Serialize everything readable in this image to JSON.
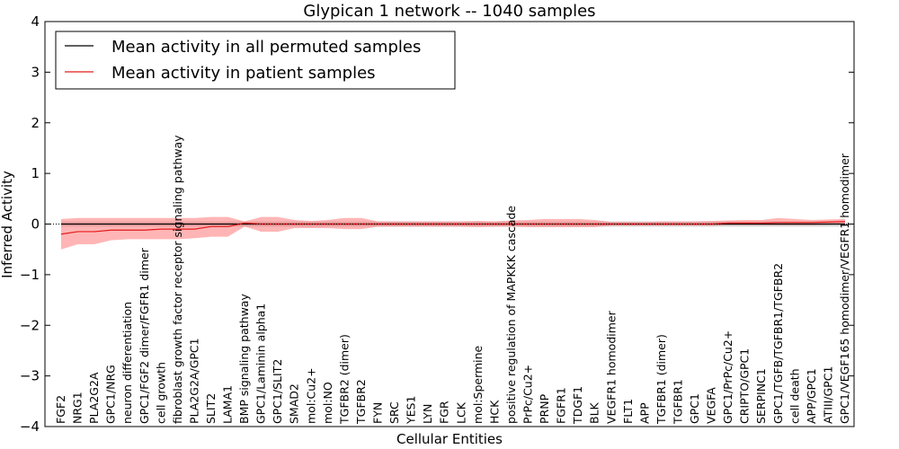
{
  "chart_data": {
    "type": "line",
    "title": "Glypican 1 network -- 1040 samples",
    "xlabel": "Cellular Entities",
    "ylabel": "Inferred Activity",
    "ylim": [
      -4,
      4
    ],
    "yticks": [
      -4,
      -3,
      -2,
      -1,
      0,
      1,
      2,
      3,
      4
    ],
    "ytick_labels": [
      "−4",
      "−3",
      "−2",
      "−1",
      "0",
      "1",
      "2",
      "3",
      "4"
    ],
    "grid": false,
    "legend_position": "top-left",
    "categories": [
      "FGF2",
      "NRG1",
      "PLA2G2A",
      "GPC1/NRG",
      "neuron differentiation",
      "GPC1/FGF2 dimer/FGFR1 dimer",
      "cell growth",
      "fibroblast growth factor receptor signaling pathway",
      "PLA2G2A/GPC1",
      "SLIT2",
      "LAMA1",
      "BMP signaling pathway",
      "GPC1/Laminin alpha1",
      "GPC1/SLIT2",
      "SMAD2",
      "mol:Cu2+",
      "mol:NO",
      "TGFBR2 (dimer)",
      "TGFBR2",
      "FYN",
      "SRC",
      "YES1",
      "LYN",
      "FGR",
      "LCK",
      "mol:Spermine",
      "HCK",
      "positive regulation of MAPKKK cascade",
      "PrPc/Cu2+",
      "PRNP",
      "FGFR1",
      "TDGF1",
      "BLK",
      "VEGFR1 homodimer",
      "FLT1",
      "APP",
      "TGFBR1 (dimer)",
      "TGFBR1",
      "GPC1",
      "VEGFA",
      "GPC1/PrPc/Cu2+",
      "CRIPTO/GPC1",
      "SERPINC1",
      "GPC1/TGFB/TGFBR1/TGFBR2",
      "cell death",
      "APP/GPC1",
      "ATIII/GPC1",
      "GPC1/VEGF165 homodimer/VEGFR1 homodimer"
    ],
    "series": [
      {
        "name": "Mean activity in all permuted samples",
        "color": "#000000",
        "values": [
          0.0,
          0.0,
          0.0,
          0.0,
          0.0,
          0.0,
          0.0,
          0.0,
          0.0,
          0.0,
          0.0,
          0.0,
          0.0,
          0.0,
          0.0,
          0.0,
          0.0,
          0.0,
          0.0,
          0.0,
          0.0,
          0.0,
          0.0,
          0.0,
          0.0,
          0.0,
          0.0,
          0.0,
          0.0,
          0.0,
          0.0,
          0.0,
          0.0,
          0.0,
          0.0,
          0.0,
          0.0,
          0.0,
          0.0,
          0.0,
          0.0,
          0.0,
          0.0,
          0.0,
          0.0,
          0.0,
          0.0,
          0.0
        ],
        "band_lower": [
          -0.05,
          -0.05,
          -0.05,
          -0.05,
          -0.05,
          -0.05,
          -0.05,
          -0.05,
          -0.05,
          -0.05,
          -0.05,
          -0.05,
          -0.05,
          -0.05,
          -0.05,
          -0.05,
          -0.05,
          -0.05,
          -0.05,
          -0.05,
          -0.05,
          -0.05,
          -0.05,
          -0.05,
          -0.05,
          -0.05,
          -0.05,
          -0.05,
          -0.05,
          -0.05,
          -0.05,
          -0.05,
          -0.05,
          -0.05,
          -0.05,
          -0.05,
          -0.05,
          -0.05,
          -0.05,
          -0.05,
          -0.05,
          -0.05,
          -0.05,
          -0.05,
          -0.05,
          -0.05,
          -0.05,
          -0.05
        ],
        "band_upper": [
          0.05,
          0.05,
          0.05,
          0.05,
          0.05,
          0.05,
          0.05,
          0.05,
          0.05,
          0.05,
          0.05,
          0.05,
          0.05,
          0.05,
          0.05,
          0.05,
          0.05,
          0.05,
          0.05,
          0.05,
          0.05,
          0.05,
          0.05,
          0.05,
          0.05,
          0.05,
          0.05,
          0.05,
          0.05,
          0.05,
          0.05,
          0.05,
          0.05,
          0.05,
          0.05,
          0.05,
          0.05,
          0.05,
          0.05,
          0.05,
          0.05,
          0.05,
          0.05,
          0.05,
          0.05,
          0.05,
          0.05,
          0.05
        ]
      },
      {
        "name": "Mean activity in patient samples",
        "color": "#e41a1c",
        "values": [
          -0.2,
          -0.15,
          -0.15,
          -0.12,
          -0.12,
          -0.12,
          -0.1,
          -0.1,
          -0.1,
          -0.05,
          -0.05,
          0.02,
          0.0,
          0.0,
          0.0,
          0.0,
          0.0,
          0.0,
          0.0,
          0.0,
          0.0,
          0.0,
          0.0,
          0.0,
          0.0,
          0.0,
          0.0,
          0.0,
          0.0,
          0.0,
          0.0,
          0.0,
          0.0,
          0.0,
          0.0,
          0.0,
          0.0,
          0.0,
          0.0,
          0.0,
          0.02,
          0.02,
          0.02,
          0.03,
          0.03,
          0.03,
          0.04,
          0.05
        ],
        "band_lower": [
          -0.5,
          -0.4,
          -0.4,
          -0.32,
          -0.3,
          -0.3,
          -0.3,
          -0.3,
          -0.28,
          -0.25,
          -0.25,
          -0.05,
          -0.15,
          -0.15,
          -0.08,
          -0.08,
          -0.08,
          -0.1,
          -0.1,
          -0.05,
          -0.05,
          -0.05,
          -0.05,
          -0.05,
          -0.05,
          -0.06,
          -0.05,
          -0.05,
          -0.06,
          -0.06,
          -0.06,
          -0.06,
          -0.06,
          -0.03,
          -0.03,
          -0.03,
          -0.03,
          -0.03,
          -0.03,
          -0.03,
          -0.02,
          -0.02,
          -0.02,
          -0.02,
          -0.02,
          -0.02,
          -0.01,
          0.0
        ],
        "band_upper": [
          0.1,
          0.12,
          0.12,
          0.12,
          0.12,
          0.12,
          0.12,
          0.12,
          0.12,
          0.14,
          0.14,
          0.05,
          0.14,
          0.14,
          0.08,
          0.06,
          0.08,
          0.12,
          0.12,
          0.05,
          0.05,
          0.05,
          0.05,
          0.05,
          0.05,
          0.06,
          0.05,
          0.07,
          0.08,
          0.1,
          0.1,
          0.1,
          0.08,
          0.04,
          0.04,
          0.04,
          0.05,
          0.05,
          0.05,
          0.06,
          0.07,
          0.08,
          0.08,
          0.12,
          0.1,
          0.08,
          0.09,
          0.1
        ]
      }
    ]
  }
}
